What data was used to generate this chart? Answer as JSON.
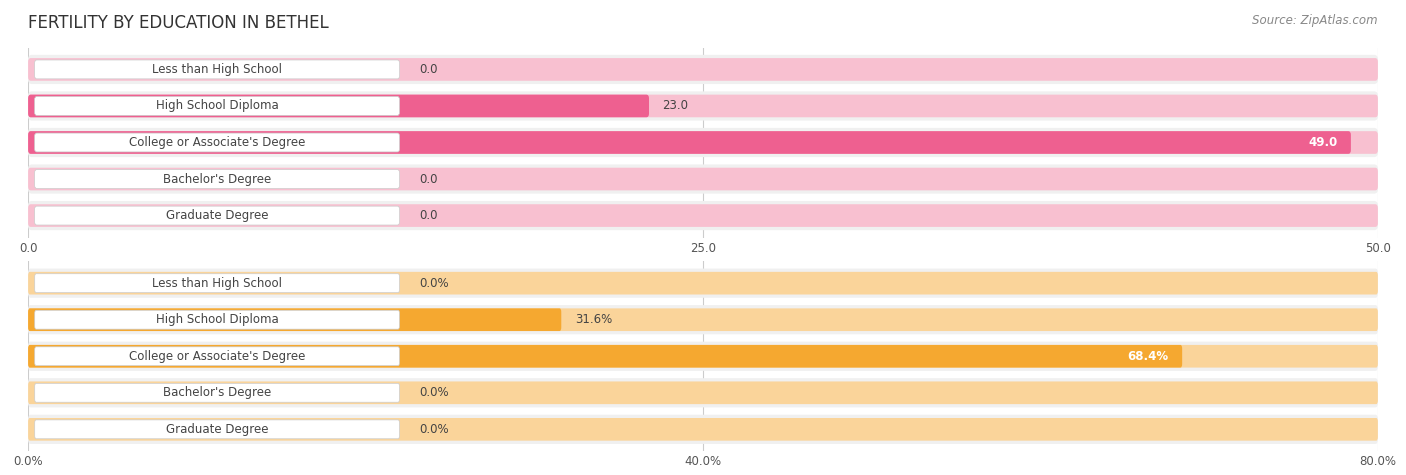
{
  "title": "FERTILITY BY EDUCATION IN BETHEL",
  "source": "Source: ZipAtlas.com",
  "chart1": {
    "categories": [
      "Less than High School",
      "High School Diploma",
      "College or Associate's Degree",
      "Bachelor's Degree",
      "Graduate Degree"
    ],
    "values": [
      0.0,
      23.0,
      49.0,
      0.0,
      0.0
    ],
    "xlim": [
      0,
      50
    ],
    "xticks": [
      0.0,
      25.0,
      50.0
    ],
    "xtick_labels": [
      "0.0",
      "25.0",
      "50.0"
    ],
    "bar_color": "#EE6090",
    "bar_color_light": "#F8C0D0",
    "bg_color": "#F0F0F0",
    "label_color": "#444444"
  },
  "chart2": {
    "categories": [
      "Less than High School",
      "High School Diploma",
      "College or Associate's Degree",
      "Bachelor's Degree",
      "Graduate Degree"
    ],
    "values": [
      0.0,
      31.6,
      68.4,
      0.0,
      0.0
    ],
    "xlim": [
      0,
      80
    ],
    "xticks": [
      0.0,
      40.0,
      80.0
    ],
    "xtick_labels": [
      "0.0%",
      "40.0%",
      "80.0%"
    ],
    "bar_color": "#F5A830",
    "bar_color_light": "#FAD49A",
    "bg_color": "#F0F0F0",
    "label_color": "#444444"
  },
  "title_fontsize": 12,
  "source_fontsize": 8.5,
  "label_fontsize": 8.5,
  "value_fontsize": 8.5,
  "tick_fontsize": 8.5
}
